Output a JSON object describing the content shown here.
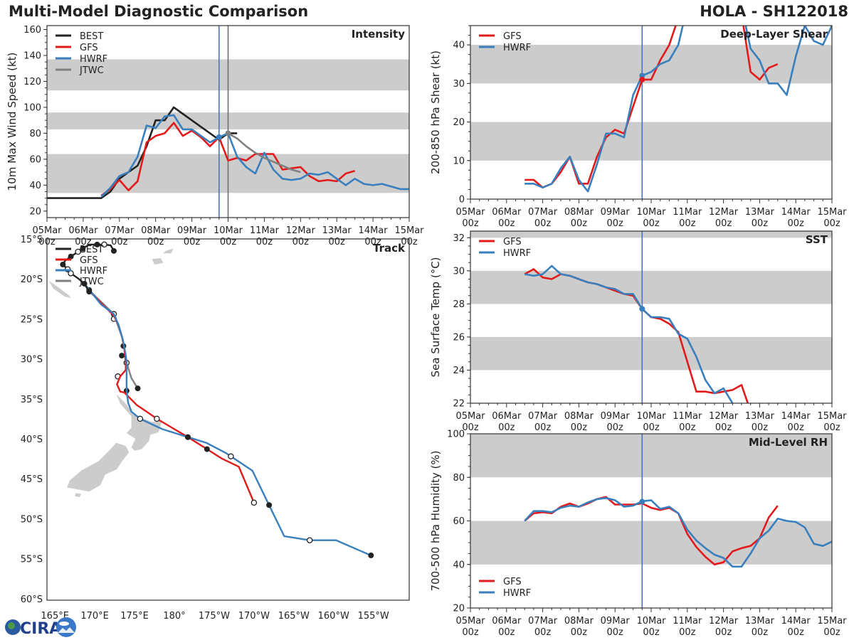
{
  "header": {
    "title": "Multi-Model Diagnostic Comparison",
    "storm": "HOLA - SH122018"
  },
  "logo": {
    "text": "CIRA"
  },
  "colors": {
    "BEST": "#222222",
    "GFS": "#e31a1c",
    "HWRF": "#3a7fbd",
    "JTWC": "#808080",
    "band": "#cccccc",
    "current_line_blue": "#4a74b5",
    "current_line_gray": "#707070"
  },
  "time_axis": {
    "start": "05Mar 00z",
    "step_hours": 6,
    "tick_labels": [
      "05Mar",
      "06Mar",
      "07Mar",
      "08Mar",
      "09Mar",
      "10Mar",
      "11Mar",
      "12Mar",
      "13Mar",
      "14Mar",
      "15Mar"
    ],
    "tick_sub": "00z"
  },
  "chart_data": [
    {
      "id": "intensity",
      "type": "line",
      "title": "Intensity",
      "ylabel": "10m Max Wind Speed (kt)",
      "xlabel": "",
      "ylim": [
        15,
        163
      ],
      "yticks": [
        20,
        40,
        60,
        80,
        100,
        120,
        140,
        160
      ],
      "bands": [
        [
          34,
          64
        ],
        [
          83,
          96
        ],
        [
          113,
          137
        ]
      ],
      "vlines_hours": [
        {
          "hour": 114,
          "color": "blue"
        },
        {
          "hour": 120,
          "color": "gray"
        }
      ],
      "legend": [
        "BEST",
        "GFS",
        "HWRF",
        "JTWC"
      ],
      "legend_position": "top-left",
      "series": [
        {
          "name": "BEST",
          "start_hour": 0,
          "values": [
            30,
            30,
            30,
            30,
            30,
            30,
            30,
            35,
            45,
            50,
            55,
            70,
            90,
            90,
            100,
            95,
            90,
            85,
            80,
            75,
            80,
            80
          ]
        },
        {
          "name": "GFS",
          "start_hour": 36,
          "values": [
            32,
            37,
            44,
            36,
            43,
            73,
            78,
            80,
            88,
            78,
            82,
            77,
            70,
            77,
            59,
            61,
            59,
            64,
            64,
            64,
            52,
            53,
            54,
            47,
            43,
            44,
            43,
            49,
            51
          ]
        },
        {
          "name": "HWRF",
          "start_hour": 36,
          "values": [
            31,
            38,
            47,
            50,
            62,
            86,
            84,
            93,
            94,
            83,
            83,
            78,
            73,
            77,
            80,
            62,
            54,
            49,
            65,
            52,
            45,
            44,
            45,
            49,
            48,
            50,
            45,
            40,
            45,
            41,
            40,
            41,
            39,
            37,
            37
          ]
        },
        {
          "name": "JTWC",
          "start_hour": 120,
          "values": [
            80,
            76,
            70,
            65,
            61,
            58,
            55,
            52,
            50
          ]
        }
      ],
      "markers": [
        {
          "series": "HWRF",
          "hour": 114,
          "value": 77
        },
        {
          "series": "JTWC",
          "hour": 120,
          "value": 80
        }
      ]
    },
    {
      "id": "shear",
      "type": "line",
      "title": "Deep-Layer Shear",
      "ylabel": "200-850 hPa Shear (kt)",
      "xlabel": "",
      "ylim": [
        0,
        45
      ],
      "yticks": [
        0,
        10,
        20,
        30,
        40
      ],
      "bands": [
        [
          10,
          20
        ],
        [
          30,
          40
        ]
      ],
      "vlines_hours": [
        {
          "hour": 114,
          "color": "blue"
        }
      ],
      "legend": [
        "GFS",
        "HWRF"
      ],
      "legend_position": "top-left",
      "series": [
        {
          "name": "GFS",
          "start_hour": 36,
          "values": [
            5,
            5,
            3,
            4,
            7,
            11,
            4,
            4,
            11,
            16,
            18,
            17,
            24,
            31,
            31,
            36,
            40,
            47,
            55,
            60,
            62,
            60,
            58,
            54,
            48,
            33,
            31,
            34,
            35
          ]
        },
        {
          "name": "HWRF",
          "start_hour": 36,
          "values": [
            4,
            4,
            3,
            4,
            8,
            11,
            5,
            2,
            9,
            17,
            17,
            16,
            27,
            32,
            33,
            35,
            36,
            40,
            50,
            58,
            62,
            63,
            60,
            55,
            50,
            39,
            36,
            30,
            30,
            27,
            37,
            45,
            41,
            40,
            45
          ]
        }
      ],
      "markers": [
        {
          "series": "HWRF",
          "hour": 114,
          "value": 32
        },
        {
          "series": "GFS",
          "hour": 114,
          "value": 31
        }
      ]
    },
    {
      "id": "sst",
      "type": "line",
      "title": "SST",
      "ylabel": "Sea Surface Temp (°C)",
      "xlabel": "",
      "ylim": [
        22,
        32.4
      ],
      "yticks": [
        22,
        24,
        26,
        28,
        30,
        32
      ],
      "bands": [
        [
          24,
          26
        ],
        [
          28,
          30
        ],
        [
          32,
          33
        ]
      ],
      "vlines_hours": [
        {
          "hour": 114,
          "color": "blue"
        }
      ],
      "legend": [
        "GFS",
        "HWRF"
      ],
      "legend_position": "top-left",
      "series": [
        {
          "name": "GFS",
          "start_hour": 36,
          "values": [
            29.8,
            30.1,
            29.6,
            29.5,
            29.8,
            29.7,
            29.5,
            29.3,
            29.2,
            29.0,
            28.8,
            28.6,
            28.5,
            27.7,
            27.2,
            27.1,
            26.8,
            26.3,
            24.5,
            22.7,
            22.7,
            22.6,
            22.7,
            22.8,
            23.1,
            21.5
          ]
        },
        {
          "name": "HWRF",
          "start_hour": 36,
          "values": [
            29.8,
            29.7,
            29.8,
            30.3,
            29.8,
            29.7,
            29.5,
            29.3,
            29.2,
            29.0,
            28.9,
            28.6,
            28.6,
            27.7,
            27.2,
            27.2,
            27.1,
            26.2,
            25.9,
            24.8,
            23.4,
            22.6,
            22.9,
            22.0
          ]
        }
      ],
      "markers": [
        {
          "series": "HWRF",
          "hour": 114,
          "value": 27.7
        }
      ]
    },
    {
      "id": "rh",
      "type": "line",
      "title": "Mid-Level RH",
      "ylabel": "700-500 hPa Humidity (%)",
      "xlabel": "",
      "ylim": [
        20,
        100
      ],
      "yticks": [
        20,
        40,
        60,
        80,
        100
      ],
      "bands": [
        [
          40,
          60
        ],
        [
          80,
          100
        ]
      ],
      "vlines_hours": [
        {
          "hour": 114,
          "color": "blue"
        }
      ],
      "legend": [
        "GFS",
        "HWRF"
      ],
      "legend_position": "bottom-left",
      "series": [
        {
          "name": "GFS",
          "start_hour": 36,
          "values": [
            60,
            63.5,
            64,
            63.5,
            66.5,
            68,
            66.5,
            68,
            70,
            71,
            67.5,
            67.5,
            67.5,
            68,
            66,
            65,
            66,
            63.5,
            54,
            48,
            43.5,
            40,
            41,
            46,
            47.5,
            48.5,
            52,
            61.5,
            67
          ]
        },
        {
          "name": "HWRF",
          "start_hour": 36,
          "values": [
            60,
            64.5,
            64.5,
            64,
            66,
            67,
            66.5,
            68.5,
            70,
            70.5,
            69.5,
            66.5,
            67,
            69,
            69.5,
            65.5,
            66.5,
            63.5,
            56,
            51,
            47.5,
            44.5,
            43,
            39,
            39,
            45,
            52,
            55.5,
            61,
            60,
            59.5,
            57,
            49.5,
            48.5,
            50.5
          ]
        }
      ],
      "markers": [
        {
          "series": "HWRF",
          "hour": 114,
          "value": 68.8
        }
      ]
    },
    {
      "id": "track",
      "type": "line",
      "title": "Track",
      "xlabel": "",
      "ylabel": "",
      "lon_ticks": [
        "165°E",
        "170°E",
        "175°E",
        "180°",
        "175°W",
        "170°W",
        "165°W",
        "160°W",
        "155°W"
      ],
      "lon_tick_values": [
        165,
        170,
        175,
        180,
        185,
        190,
        195,
        200,
        205
      ],
      "lat_ticks": [
        "15°S",
        "20°S",
        "25°S",
        "30°S",
        "35°S",
        "40°S",
        "45°S",
        "50°S",
        "55°S",
        "60°S"
      ],
      "lat_tick_values": [
        -15,
        -20,
        -25,
        -30,
        -35,
        -40,
        -45,
        -50,
        -55,
        -60
      ],
      "xlim_lon": [
        164,
        209.5
      ],
      "ylim_lat": [
        -60.2,
        -15
      ],
      "legend": [
        "BEST",
        "GFS",
        "HWRF",
        "JTWC"
      ],
      "legend_position": "top-left",
      "series": [
        {
          "name": "BEST",
          "points": [
            [
              172.4,
              -16.5
            ],
            [
              172.0,
              -15.8
            ],
            [
              171.2,
              -15.7
            ],
            [
              170.3,
              -15.7
            ],
            [
              169.3,
              -15.7
            ],
            [
              168.5,
              -16.2
            ],
            [
              167.9,
              -16.6
            ],
            [
              167.0,
              -17.2
            ],
            [
              166.3,
              -17.7
            ],
            [
              166.0,
              -18.2
            ],
            [
              166.6,
              -18.8
            ],
            [
              167.0,
              -19.3
            ],
            [
              168.0,
              -20.0
            ],
            [
              168.7,
              -20.6
            ],
            [
              169.3,
              -21.6
            ]
          ],
          "filled": [
            [
              172.4,
              -16.5
            ],
            [
              170.3,
              -15.7
            ],
            [
              168.5,
              -16.2
            ],
            [
              167.0,
              -17.2
            ],
            [
              166.0,
              -18.2
            ],
            [
              169.3,
              -21.6
            ]
          ],
          "open": [
            [
              171.2,
              -15.7
            ],
            [
              167.9,
              -16.6
            ],
            [
              166.6,
              -18.8
            ],
            [
              167.0,
              -19.3
            ]
          ]
        },
        {
          "name": "GFS",
          "points": [
            [
              168.7,
              -20.6
            ],
            [
              169.5,
              -21.7
            ],
            [
              171.0,
              -23.2
            ],
            [
              172.4,
              -24.6
            ],
            [
              173.0,
              -25.8
            ],
            [
              173.4,
              -27.2
            ],
            [
              173.7,
              -28.6
            ],
            [
              173.9,
              -30.5
            ],
            [
              173.9,
              -31.4
            ],
            [
              173.2,
              -32.2
            ],
            [
              172.8,
              -33.2
            ],
            [
              173.2,
              -34.1
            ],
            [
              173.7,
              -34.2
            ],
            [
              174.5,
              -35.0
            ],
            [
              175.3,
              -35.8
            ],
            [
              176.5,
              -36.6
            ],
            [
              177.8,
              -37.5
            ],
            [
              179.5,
              -38.5
            ],
            [
              181.7,
              -39.8
            ],
            [
              184.1,
              -41.3
            ],
            [
              186.0,
              -42.5
            ],
            [
              188.1,
              -43.5
            ],
            [
              190.0,
              -48.0
            ]
          ],
          "filled": [
            [
              181.7,
              -39.8
            ],
            [
              184.1,
              -41.3
            ]
          ],
          "open": [
            [
              177.8,
              -37.5
            ],
            [
              190.0,
              -48.0
            ]
          ]
        },
        {
          "name": "HWRF",
          "points": [
            [
              168.7,
              -20.6
            ],
            [
              169.5,
              -21.6
            ],
            [
              170.8,
              -23.2
            ],
            [
              172.4,
              -24.4
            ],
            [
              173.0,
              -25.8
            ],
            [
              173.5,
              -27.5
            ],
            [
              173.9,
              -29.5
            ],
            [
              174.0,
              -30.5
            ],
            [
              174.0,
              -32.0
            ],
            [
              174.0,
              -34.0
            ],
            [
              174.2,
              -35.5
            ],
            [
              174.6,
              -36.6
            ],
            [
              175.7,
              -37.5
            ],
            [
              178.5,
              -38.8
            ],
            [
              181.7,
              -39.8
            ],
            [
              184.0,
              -40.5
            ],
            [
              186.5,
              -41.8
            ],
            [
              189.8,
              -44.0
            ],
            [
              191.9,
              -48.3
            ],
            [
              193.8,
              -52.2
            ],
            [
              197.0,
              -52.7
            ],
            [
              200.3,
              -52.7
            ],
            [
              204.7,
              -54.6
            ]
          ],
          "filled": [
            [
              168.7,
              -20.6
            ],
            [
              181.7,
              -39.8
            ],
            [
              191.9,
              -48.3
            ],
            [
              204.7,
              -54.6
            ]
          ],
          "open": [
            [
              175.7,
              -37.5
            ],
            [
              187.1,
              -42.2
            ],
            [
              197.0,
              -52.7
            ]
          ]
        },
        {
          "name": "JTWC",
          "points": [
            [
              169.3,
              -21.4
            ],
            [
              170.4,
              -22.5
            ],
            [
              172.4,
              -24.4
            ],
            [
              173.5,
              -27.5
            ],
            [
              174.0,
              -30.5
            ],
            [
              174.6,
              -32.4
            ],
            [
              175.4,
              -33.7
            ]
          ],
          "filled": [
            [
              169.3,
              -21.4
            ],
            [
              173.6,
              -28.4
            ],
            [
              173.4,
              -29.6
            ],
            [
              174.0,
              -34.0
            ],
            [
              175.4,
              -33.7
            ]
          ],
          "open": [
            [
              172.4,
              -24.4
            ],
            [
              172.4,
              -25.0
            ],
            [
              174.0,
              -30.5
            ],
            [
              172.9,
              -32.2
            ]
          ]
        }
      ]
    }
  ]
}
